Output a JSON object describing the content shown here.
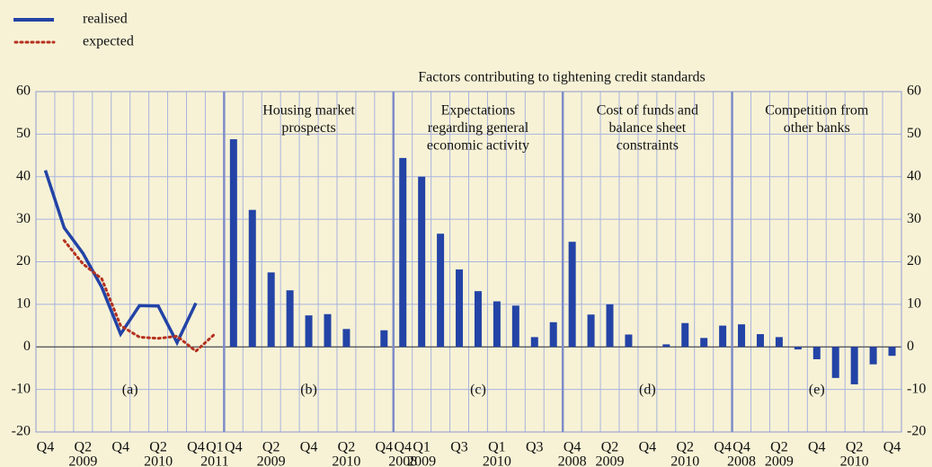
{
  "chart_data": {
    "type": "bar",
    "title": "Factors contributing to tightening credit standards",
    "ylim": [
      -20,
      60
    ],
    "yticks": [
      60,
      50,
      40,
      30,
      20,
      10,
      0,
      -10,
      -20
    ],
    "grid": true,
    "color": "#2343a6",
    "panels": [
      {
        "type": "line",
        "label": "(a)",
        "title": [],
        "categories": [
          "Q4",
          null,
          "Q2",
          null,
          "Q4",
          null,
          "Q2",
          null,
          "Q4",
          "Q1"
        ],
        "years": [
          null,
          null,
          "2009",
          null,
          null,
          null,
          "2010",
          null,
          null,
          "2011"
        ],
        "series": [
          {
            "name": "realised",
            "color": "#2343a6",
            "style": "solid",
            "values": [
              41.5,
              28,
              22,
              14,
              3,
              9.7,
              9.6,
              1,
              10.3,
              null
            ]
          },
          {
            "name": "expected",
            "color": "#b5301f",
            "style": "dotted",
            "values": [
              null,
              25,
              19.5,
              16,
              5,
              2.3,
              2,
              2.5,
              -1,
              3
            ]
          }
        ]
      },
      {
        "type": "bar",
        "label": "(b)",
        "title": [
          "Housing market",
          "prospects"
        ],
        "categories": [
          "Q4",
          null,
          "Q2",
          null,
          "Q4",
          null,
          "Q2",
          null,
          "Q4"
        ],
        "years": [
          null,
          null,
          "2009",
          null,
          null,
          null,
          "2010",
          null,
          null
        ],
        "values": [
          48.8,
          32.2,
          17.5,
          13.3,
          7.4,
          7.7,
          4.2,
          0,
          3.9
        ]
      },
      {
        "type": "bar",
        "label": "(c)",
        "title": [
          "Expectations",
          "regarding general",
          "economic activity"
        ],
        "categories": [
          "Q4",
          "Q1",
          null,
          "Q3",
          null,
          "Q1",
          null,
          "Q3",
          null
        ],
        "years": [
          "2008",
          "2009",
          null,
          null,
          null,
          "2010",
          null,
          null,
          null
        ],
        "values": [
          44.4,
          40,
          26.6,
          18.2,
          13.1,
          10.7,
          9.7,
          2.3,
          5.8
        ]
      },
      {
        "type": "bar",
        "label": "(d)",
        "title": [
          "Cost of funds and",
          "balance sheet",
          "constraints"
        ],
        "categories": [
          "Q4",
          null,
          "Q2",
          null,
          "Q4",
          null,
          "Q2",
          null,
          "Q4"
        ],
        "years": [
          "2008",
          null,
          "2009",
          null,
          null,
          null,
          "2010",
          null,
          null
        ],
        "values": [
          24.7,
          7.6,
          10,
          2.9,
          0,
          0.6,
          5.6,
          2.1,
          5.0
        ]
      },
      {
        "type": "bar",
        "label": "(e)",
        "title": [
          "Competition from",
          "other banks"
        ],
        "categories": [
          "Q4",
          null,
          "Q2",
          null,
          "Q4",
          null,
          "Q2",
          null,
          "Q4"
        ],
        "years": [
          "2008",
          null,
          "2009",
          null,
          null,
          null,
          "2010",
          null,
          null
        ],
        "values": [
          5.3,
          3,
          2.3,
          -0.6,
          -2.9,
          -7.3,
          -8.8,
          -4.1,
          -2.1
        ]
      }
    ]
  }
}
